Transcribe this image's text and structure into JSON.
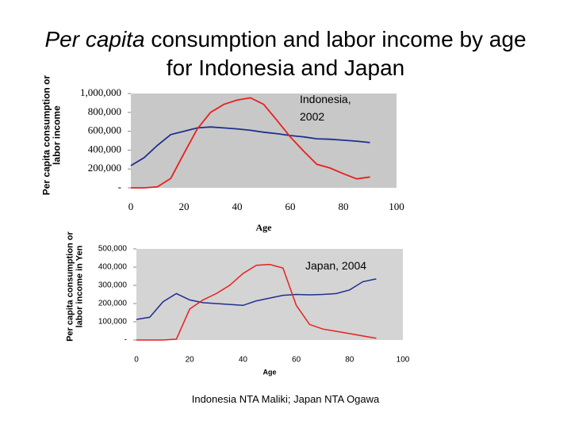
{
  "slide": {
    "title_parts": [
      "Per capita",
      "consumption and labor income by age for Indonesia and Japan"
    ],
    "source": "Indonesia NTA Maliki; Japan NTA Ogawa"
  },
  "chart_data": [
    {
      "type": "line",
      "annotation": "Indonesia, 2002",
      "xlabel": "Age",
      "ylabel": "Per capita consumption or labor income",
      "x": [
        0,
        5,
        10,
        15,
        20,
        25,
        30,
        35,
        40,
        45,
        50,
        55,
        60,
        65,
        70,
        75,
        80,
        85,
        90
      ],
      "series": [
        {
          "color": "#1f2f8f",
          "values": [
            235000,
            320000,
            450000,
            565000,
            600000,
            635000,
            645000,
            635000,
            625000,
            610000,
            590000,
            575000,
            555000,
            540000,
            520000,
            515000,
            505000,
            495000,
            480000
          ]
        },
        {
          "color": "#e8201e",
          "values": [
            0,
            0,
            10000,
            100000,
            365000,
            625000,
            800000,
            885000,
            930000,
            955000,
            885000,
            715000,
            540000,
            390000,
            250000,
            210000,
            150000,
            95000,
            115000
          ]
        }
      ],
      "xlim": [
        0,
        100
      ],
      "xticks": [
        0,
        20,
        40,
        60,
        80,
        100
      ],
      "ylim": [
        0,
        1000000
      ],
      "yticks": [
        {
          "value": 0,
          "label": "-"
        },
        {
          "value": 200000,
          "label": "200,000"
        },
        {
          "value": 400000,
          "label": "400,000"
        },
        {
          "value": 600000,
          "label": "600,000"
        },
        {
          "value": 800000,
          "label": "800,000"
        },
        {
          "value": 1000000,
          "label": "1,000,000"
        }
      ]
    },
    {
      "type": "line",
      "annotation": "Japan, 2004",
      "xlabel": "Age",
      "ylabel": "Per capita consumption or labor income in Yen",
      "x": [
        0,
        5,
        10,
        15,
        20,
        25,
        30,
        35,
        40,
        45,
        50,
        55,
        60,
        65,
        70,
        75,
        80,
        85,
        90
      ],
      "series": [
        {
          "color": "#1f2f8f",
          "values": [
            113000,
            125000,
            210000,
            255000,
            220000,
            205000,
            200000,
            195000,
            190000,
            215000,
            230000,
            245000,
            250000,
            248000,
            250000,
            255000,
            275000,
            320000,
            335000
          ]
        },
        {
          "color": "#e8201e",
          "values": [
            0,
            0,
            0,
            5000,
            170000,
            220000,
            255000,
            300000,
            365000,
            410000,
            415000,
            395000,
            190000,
            85000,
            60000,
            48000,
            35000,
            22000,
            10000
          ]
        }
      ],
      "xlim": [
        0,
        100
      ],
      "xticks": [
        0,
        20,
        40,
        60,
        80,
        100
      ],
      "ylim": [
        0,
        500000
      ],
      "yticks": [
        {
          "value": 0,
          "label": "-"
        },
        {
          "value": 100000,
          "label": "100,000"
        },
        {
          "value": 200000,
          "label": "200,000"
        },
        {
          "value": 300000,
          "label": "300,000"
        },
        {
          "value": 400000,
          "label": "400,000"
        },
        {
          "value": 500000,
          "label": "500,000"
        }
      ]
    }
  ]
}
